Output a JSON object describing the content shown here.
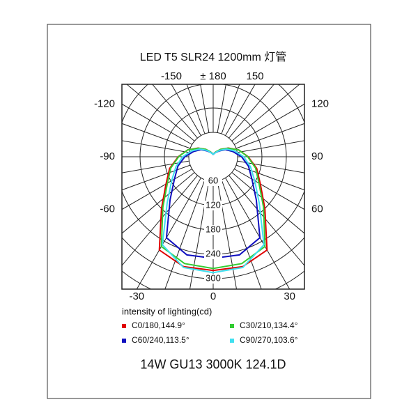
{
  "chart_data": {
    "type": "polar",
    "title": "LED T5 SLR24 1200mm 灯管",
    "legend_title": "intensity of lighting(cd)",
    "footer": "14W GU13 3000K 124.1D",
    "angles": [
      -180,
      -165,
      -150,
      -135,
      -120,
      -105,
      -90,
      -75,
      -60,
      -45,
      -30,
      -15,
      0,
      15,
      30,
      45,
      60,
      75,
      90,
      105,
      120,
      135,
      150,
      165,
      180
    ],
    "series": [
      {
        "name": "C0/180,144.9°",
        "color": "#e00000",
        "values": [
          5,
          9,
          14,
          26,
          43,
          65,
          86,
          111,
          134,
          180,
          265,
          280,
          280,
          280,
          265,
          180,
          134,
          111,
          86,
          65,
          43,
          26,
          14,
          9,
          5
        ]
      },
      {
        "name": "C30/210,134.4°",
        "color": "#33cc33",
        "values": [
          5,
          9,
          14,
          26,
          42,
          65,
          85,
          108,
          130,
          175,
          255,
          272,
          275,
          272,
          255,
          175,
          130,
          108,
          85,
          65,
          42,
          26,
          14,
          9,
          5
        ]
      },
      {
        "name": "C60/240,113.5°",
        "color": "#1010c0",
        "values": [
          5,
          8,
          12,
          20,
          35,
          50,
          70,
          90,
          110,
          150,
          230,
          250,
          250,
          250,
          230,
          150,
          110,
          90,
          70,
          50,
          35,
          20,
          12,
          8,
          5
        ]
      },
      {
        "name": "C90/270,103.6°",
        "color": "#40e0f0",
        "values": [
          5,
          8,
          12,
          22,
          38,
          55,
          75,
          95,
          118,
          160,
          250,
          282,
          285,
          282,
          250,
          160,
          118,
          95,
          75,
          55,
          38,
          22,
          12,
          8,
          5
        ]
      }
    ],
    "rlim": [
      0,
      300
    ],
    "rticks": [
      60,
      120,
      180,
      240,
      300
    ],
    "angle_ticks": [
      -150,
      {
        "value": 180,
        "label": "± 180"
      },
      150,
      -120,
      120,
      -90,
      90,
      -60,
      60,
      -30,
      0,
      30
    ]
  }
}
